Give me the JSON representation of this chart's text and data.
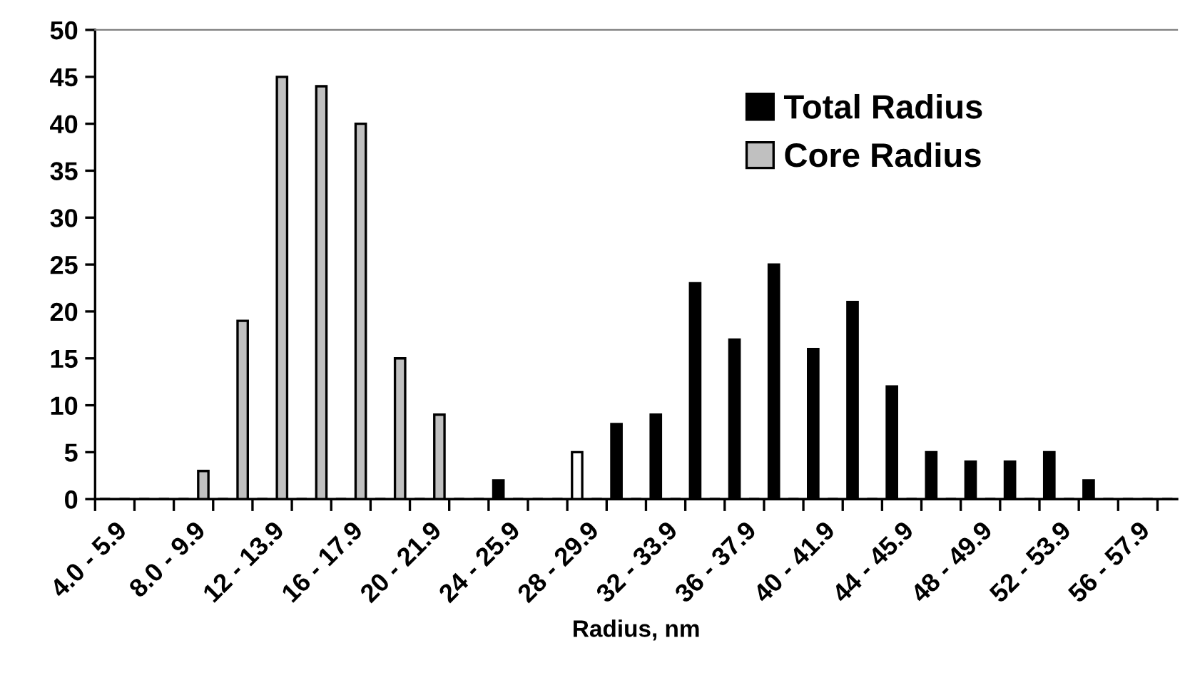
{
  "chart_data": {
    "type": "bar",
    "xlabel": "Radius, nm",
    "categories": [
      "4.0 - 5.9",
      null,
      "8.0 - 9.9",
      null,
      "12 - 13.9",
      null,
      "16 - 17.9",
      null,
      "20 - 21.9",
      null,
      "24 - 25.9",
      null,
      "28 - 29.9",
      null,
      "32 - 33.9",
      null,
      "36 - 37.9",
      null,
      "40 - 41.9",
      null,
      "44 - 45.9",
      null,
      "48 - 49.9",
      null,
      "52 - 53.9",
      null,
      "56 - 57.9",
      null
    ],
    "series": [
      {
        "name": "Total Radius",
        "color": "#000000",
        "colors": [
          "#000000",
          "#000000",
          "#000000",
          "#000000",
          "#000000",
          "#000000",
          "#000000",
          "#000000",
          "#000000",
          "#000000",
          "#000000",
          "#000000",
          "#ffffff",
          "#000000",
          "#000000",
          "#000000",
          "#000000",
          "#000000",
          "#000000",
          "#000000",
          "#000000",
          "#000000",
          "#000000",
          "#000000",
          "#000000",
          "#000000",
          "#000000",
          "#000000"
        ],
        "values": [
          0,
          0,
          0,
          0,
          0,
          0,
          0,
          0,
          0,
          0,
          2,
          0,
          5,
          8,
          9,
          23,
          17,
          25,
          16,
          21,
          12,
          5,
          4,
          4,
          5,
          2,
          0,
          0
        ]
      },
      {
        "name": "Core Radius",
        "color": "#c0c0c0",
        "values": [
          0,
          0,
          3,
          19,
          45,
          44,
          40,
          15,
          9,
          0,
          0,
          0,
          0,
          0,
          0,
          0,
          0,
          0,
          0,
          0,
          0,
          0,
          0,
          0,
          0,
          0,
          0,
          0
        ]
      }
    ],
    "ylim": [
      0,
      50
    ],
    "yticks": [
      0,
      5,
      10,
      15,
      20,
      25,
      30,
      35,
      40,
      45,
      50
    ],
    "grid": false,
    "legend": "top right"
  }
}
